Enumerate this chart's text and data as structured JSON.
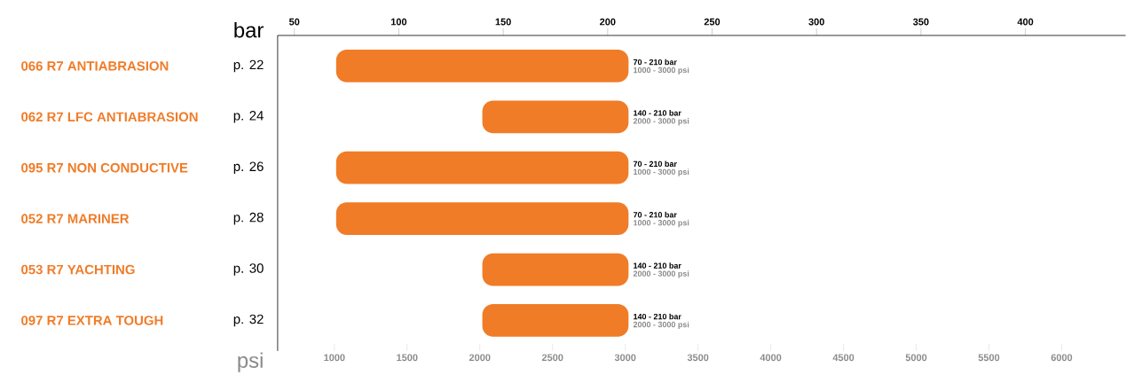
{
  "chart_data": {
    "type": "bar",
    "orientation": "horizontal",
    "xlabel": "bar",
    "x2label": "psi",
    "categories": [
      "066 R7 ANTIABRASION",
      "062 R7 LFC ANTIABRASION",
      "095 R7 NON CONDUCTIVE",
      "052 R7 MARINER",
      "053 R7 YACHTING",
      "097 R7 EXTRA TOUGH"
    ],
    "base": [
      70,
      140,
      70,
      70,
      140,
      140
    ],
    "values": [
      140,
      70,
      140,
      140,
      70,
      70
    ],
    "color": "#f07c28",
    "annotations": [
      "p. 22",
      "p. 24",
      "p. 26",
      "p. 28",
      "p. 30",
      "p. 32",
      "70 - 210 bar",
      "1000 - 3000 psi",
      "140 - 210 bar",
      "2000 - 3000 psi",
      "70 - 210 bar",
      "1000 - 3000 psi",
      "70 - 210 bar",
      "1000 - 3000 psi",
      "140 - 210 bar",
      "2000 - 3000 psi",
      "140 - 210 bar",
      "2000 - 3000 psi"
    ],
    "xlim": [
      42,
      448
    ],
    "xticks": [
      50,
      100,
      150,
      200,
      250,
      300,
      350,
      400
    ],
    "x2lim": [
      610,
      6440
    ],
    "x2ticks": [
      1000,
      1500,
      2000,
      2500,
      3000,
      3500,
      4000,
      4500,
      5000,
      5500,
      6000
    ],
    "grid": false
  }
}
